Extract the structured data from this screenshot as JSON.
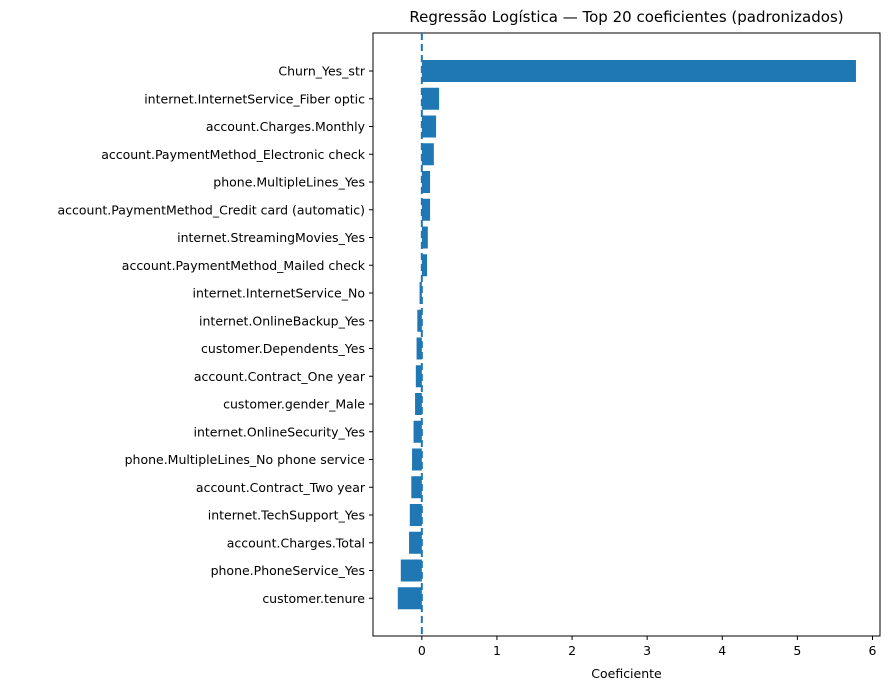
{
  "chart_data": {
    "type": "bar",
    "orientation": "horizontal",
    "title": "Regressão Logística — Top 20 coeficientes (padronizados)",
    "xlabel": "Coeficiente",
    "ylabel": "",
    "xlim": [
      -0.65,
      6.1
    ],
    "xticks": [
      0,
      1,
      2,
      3,
      4,
      5,
      6
    ],
    "grid": false,
    "reference_line": {
      "x": 0,
      "style": "dashed"
    },
    "bar_color": "#1f77b4",
    "categories": [
      "Churn_Yes_str",
      "internet.InternetService_Fiber optic",
      "account.Charges.Monthly",
      "account.PaymentMethod_Electronic check",
      "phone.MultipleLines_Yes",
      "account.PaymentMethod_Credit card (automatic)",
      "internet.StreamingMovies_Yes",
      "account.PaymentMethod_Mailed check",
      "internet.InternetService_No",
      "internet.OnlineBackup_Yes",
      "customer.Dependents_Yes",
      "account.Contract_One year",
      "customer.gender_Male",
      "internet.OnlineSecurity_Yes",
      "phone.MultipleLines_No phone service",
      "account.Contract_Two year",
      "internet.TechSupport_Yes",
      "account.Charges.Total",
      "phone.PhoneService_Yes",
      "customer.tenure"
    ],
    "values": [
      5.78,
      0.23,
      0.19,
      0.16,
      0.11,
      0.11,
      0.08,
      0.07,
      -0.03,
      -0.06,
      -0.07,
      -0.08,
      -0.09,
      -0.11,
      -0.13,
      -0.14,
      -0.16,
      -0.17,
      -0.28,
      -0.32
    ]
  }
}
